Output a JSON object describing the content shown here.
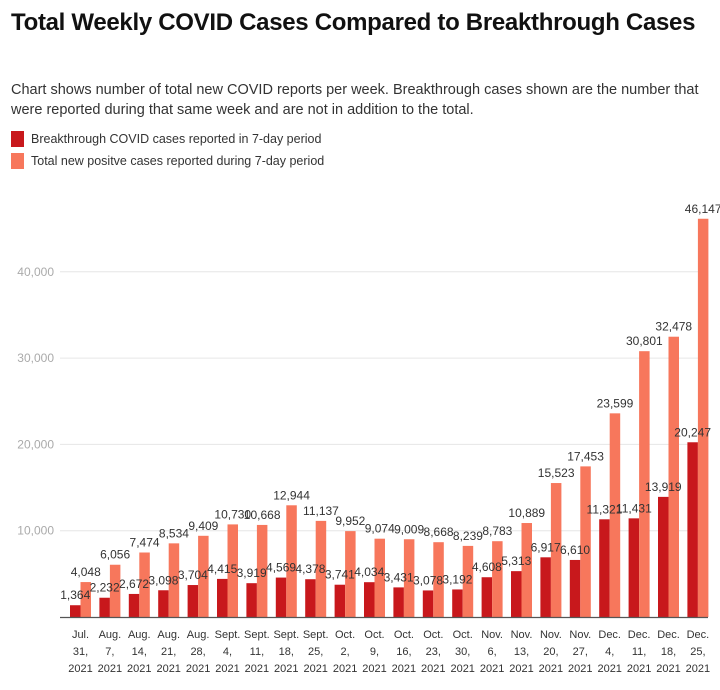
{
  "chart_data": {
    "type": "bar",
    "title": "Total Weekly COVID Cases Compared to Breakthrough Cases",
    "subtitle": "Chart shows number of total new COVID reports per week. Breakthrough cases shown are the number that were reported during that same week and are not in addition to the total.",
    "xlabel": "",
    "ylabel": "",
    "ylim": [
      0,
      46147
    ],
    "yticks": [
      10000,
      20000,
      30000,
      40000
    ],
    "ytick_labels": [
      "10,000",
      "20,000",
      "30,000",
      "40,000"
    ],
    "grid": true,
    "legend_position": "top-left",
    "categories": [
      [
        "Jul.",
        "31,",
        "2021"
      ],
      [
        "Aug.",
        "7,",
        "2021"
      ],
      [
        "Aug.",
        "14,",
        "2021"
      ],
      [
        "Aug.",
        "21,",
        "2021"
      ],
      [
        "Aug.",
        "28,",
        "2021"
      ],
      [
        "Sept.",
        "4,",
        "2021"
      ],
      [
        "Sept.",
        "11,",
        "2021"
      ],
      [
        "Sept.",
        "18,",
        "2021"
      ],
      [
        "Sept.",
        "25,",
        "2021"
      ],
      [
        "Oct.",
        "2,",
        "2021"
      ],
      [
        "Oct.",
        "9,",
        "2021"
      ],
      [
        "Oct.",
        "16,",
        "2021"
      ],
      [
        "Oct.",
        "23,",
        "2021"
      ],
      [
        "Oct.",
        "30,",
        "2021"
      ],
      [
        "Nov.",
        "6,",
        "2021"
      ],
      [
        "Nov.",
        "13,",
        "2021"
      ],
      [
        "Nov.",
        "20,",
        "2021"
      ],
      [
        "Nov.",
        "27,",
        "2021"
      ],
      [
        "Dec.",
        "4,",
        "2021"
      ],
      [
        "Dec.",
        "11,",
        "2021"
      ],
      [
        "Dec.",
        "18,",
        "2021"
      ],
      [
        "Dec.",
        "25,",
        "2021"
      ]
    ],
    "series": [
      {
        "name": "Breakthrough COVID cases reported in 7-day period",
        "color": "#c8181c",
        "values": [
          1364,
          2232,
          2672,
          3098,
          3704,
          4415,
          3919,
          4569,
          4378,
          3741,
          4034,
          3431,
          3078,
          3192,
          4608,
          5313,
          6917,
          6610,
          11321,
          11431,
          13919,
          20247
        ],
        "labels": [
          "1,364",
          "2,232",
          "2,672",
          "3,098",
          "3,704",
          "4,415",
          "3,919",
          "4,569",
          "4,378",
          "3,741",
          "4,034",
          "3,431",
          "3,078",
          "3,192",
          "4,608",
          "5,313",
          "6,917",
          "6,610",
          "11,321",
          "11,431",
          "13,919",
          "20,247"
        ]
      },
      {
        "name": "Total new positve cases reported during 7-day period",
        "color": "#f7775c",
        "values": [
          4048,
          6056,
          7474,
          8534,
          9409,
          10730,
          10668,
          12944,
          11137,
          9952,
          9074,
          9009,
          8668,
          8239,
          8783,
          10889,
          15523,
          17453,
          23599,
          30801,
          32478,
          46147
        ],
        "labels": [
          "4,048",
          "6,056",
          "7,474",
          "8,534",
          "9,409",
          "10,730",
          "10,668",
          "12,944",
          "11,137",
          "9,952",
          "9,074",
          "9,009",
          "8,668",
          "8,239",
          "8,783",
          "10,889",
          "15,523",
          "17,453",
          "23,599",
          "30,801",
          "32,478",
          "46,147"
        ]
      }
    ]
  }
}
